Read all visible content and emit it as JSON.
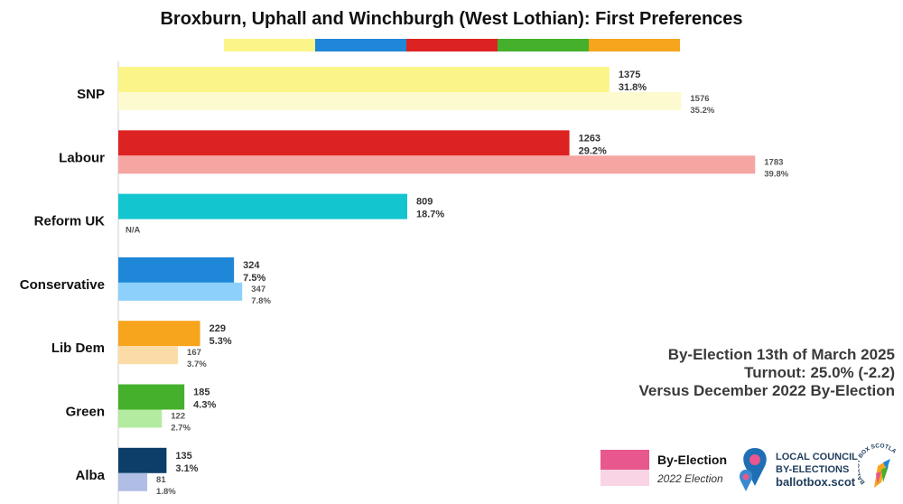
{
  "title": "Broxburn, Uphall and Winchburgh (West Lothian): First Preferences",
  "stripe_colors": [
    "#fbf589",
    "#1f87d8",
    "#dd2222",
    "#44b02b",
    "#f7a51d"
  ],
  "chart_data": {
    "type": "bar",
    "orientation": "horizontal",
    "categories": [
      "SNP",
      "Labour",
      "Reform UK",
      "Conservative",
      "Lib Dem",
      "Green",
      "Alba"
    ],
    "series": [
      {
        "name": "By-Election",
        "values": [
          1375,
          1263,
          809,
          324,
          229,
          185,
          135
        ],
        "percent_labels": [
          "31.8%",
          "29.2%",
          "18.7%",
          "7.5%",
          "5.3%",
          "4.3%",
          "3.1%"
        ],
        "colors": [
          "#fbf589",
          "#dd2222",
          "#12c5cf",
          "#1f87d8",
          "#f7a51d",
          "#44b02b",
          "#0c3e69"
        ]
      },
      {
        "name": "2022 Election",
        "values": [
          1576,
          1783,
          null,
          347,
          167,
          122,
          81
        ],
        "percent_labels": [
          "35.2%",
          "39.8%",
          "N/A",
          "7.8%",
          "3.7%",
          "2.7%",
          "1.8%"
        ],
        "colors": [
          "#fdfad0",
          "#f5a6a3",
          "#ffffff",
          "#8dd0fb",
          "#fcdca6",
          "#b3eba0",
          "#b0bde5"
        ]
      }
    ],
    "xlim": [
      0,
      1800
    ],
    "grid": false,
    "legend_position": "bottom-right"
  },
  "info": {
    "date": "By-Election 13th of March 2025",
    "turnout": "Turnout: 25.0% (-2.2)",
    "versus": "Versus December 2022 By-Election"
  },
  "legend": {
    "by_election_label": "By-Election",
    "election_2022_label": "2022 Election",
    "by_election_color": "#e8578e",
    "election_2022_color": "#f9d4e4"
  },
  "brand": {
    "line1": "LOCAL COUNCIL",
    "line2": "BY-ELECTIONS",
    "url": "ballotbox.scot",
    "seal_text": "BALLOT BOX SCOTLAND"
  }
}
